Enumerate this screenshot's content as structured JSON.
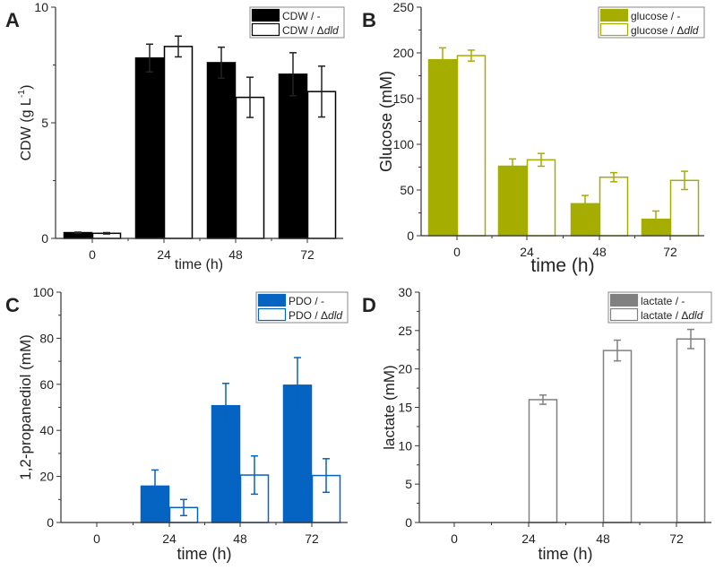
{
  "chart_data": [
    {
      "type": "bar",
      "panel": "A",
      "categories": [
        "0",
        "24",
        "48",
        "72"
      ],
      "xlabel": "time (h)",
      "ylabel": "CDW (g L-1)",
      "ylabel_main": "CDW (g L",
      "ylabel_sup": "-1",
      "ylabel_end": ")",
      "ylim": [
        0,
        10
      ],
      "yticks": [
        0,
        5,
        10
      ],
      "legend_position": "top-right",
      "series": [
        {
          "name": "CDW / -",
          "name_prefix": "CDW / -",
          "name_italic": "",
          "fill": "#000000",
          "stroke": "#000000",
          "values": [
            0.25,
            7.8,
            7.6,
            7.1
          ],
          "errors": [
            0.02,
            0.6,
            0.67,
            0.93
          ]
        },
        {
          "name": "CDW / Δdld",
          "name_prefix": "CDW / Δ",
          "name_italic": "dld",
          "fill": "#ffffff",
          "stroke": "#000000",
          "values": [
            0.22,
            8.3,
            6.1,
            6.35
          ],
          "errors": [
            0.03,
            0.45,
            0.87,
            1.1
          ]
        }
      ]
    },
    {
      "type": "bar",
      "panel": "B",
      "categories": [
        "0",
        "24",
        "48",
        "72"
      ],
      "xlabel": "time (h)",
      "ylabel": "Glucose (mM)",
      "ylabel_main": "Glucose (mM)",
      "ylabel_sup": "",
      "ylabel_end": "",
      "ylim": [
        0,
        250
      ],
      "yticks": [
        0,
        50,
        100,
        150,
        200,
        250
      ],
      "legend_position": "top-right",
      "series": [
        {
          "name": "glucose / -",
          "name_prefix": "glucose / -",
          "name_italic": "",
          "fill": "#a5ae00",
          "stroke": "#a5ae00",
          "values": [
            192.5,
            76,
            35,
            18
          ],
          "errors": [
            13,
            8,
            9,
            9
          ]
        },
        {
          "name": "glucose / Δdld",
          "name_prefix": "glucose / Δ",
          "name_italic": "dld",
          "fill": "#ffffff",
          "stroke": "#a5ae00",
          "values": [
            197,
            83,
            64,
            60.5
          ],
          "errors": [
            6,
            7,
            5,
            10
          ]
        }
      ]
    },
    {
      "type": "bar",
      "panel": "C",
      "categories": [
        "0",
        "24",
        "48",
        "72"
      ],
      "xlabel": "time (h)",
      "ylabel": "1,2-propanediol (mM)",
      "ylabel_main": "1,2-propanediol (mM)",
      "ylabel_sup": "",
      "ylabel_end": "",
      "ylim": [
        0,
        100
      ],
      "yticks": [
        0,
        20,
        40,
        60,
        80,
        100
      ],
      "legend_position": "top-right",
      "series": [
        {
          "name": "PDO / -",
          "name_prefix": "PDO / -",
          "name_italic": "",
          "fill": "#0563c1",
          "stroke": "#0563c1",
          "values": [
            0,
            15.8,
            50.7,
            59.6
          ],
          "errors": [
            0,
            7,
            9.7,
            12
          ]
        },
        {
          "name": "PDO / Δdld",
          "name_prefix": "PDO / Δ",
          "name_italic": "dld",
          "fill": "#ffffff",
          "stroke": "#0563c1",
          "values": [
            0,
            6.5,
            20.6,
            20.4
          ],
          "errors": [
            0,
            3.5,
            8.3,
            7.3
          ]
        }
      ]
    },
    {
      "type": "bar",
      "panel": "D",
      "categories": [
        "0",
        "24",
        "48",
        "72"
      ],
      "xlabel": "time (h)",
      "ylabel": "lactate (mM)",
      "ylabel_main": "lactate (mM)",
      "ylabel_sup": "",
      "ylabel_end": "",
      "ylim": [
        0,
        30
      ],
      "yticks": [
        0,
        5,
        10,
        15,
        20,
        25,
        30
      ],
      "legend_position": "top-right",
      "series": [
        {
          "name": "lactate / -",
          "name_prefix": "lactate / -",
          "name_italic": "",
          "fill": "#808080",
          "stroke": "#808080",
          "values": [
            0,
            0,
            0,
            0
          ],
          "errors": [
            0,
            0,
            0,
            0
          ]
        },
        {
          "name": "lactate / Δdld",
          "name_prefix": "lactate / Δ",
          "name_italic": "dld",
          "fill": "#ffffff",
          "stroke": "#808080",
          "values": [
            0,
            16.0,
            22.4,
            23.9
          ],
          "errors": [
            0,
            0.6,
            1.35,
            1.25
          ]
        }
      ]
    }
  ]
}
